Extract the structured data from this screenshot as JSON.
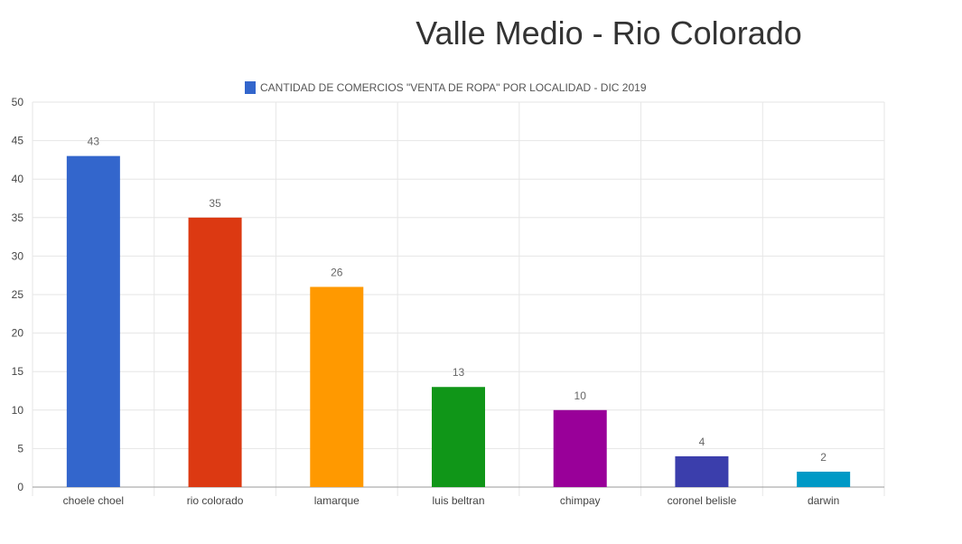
{
  "page": {
    "title": "Valle Medio - Rio Colorado"
  },
  "chart_data": {
    "type": "bar",
    "title": "",
    "xlabel": "",
    "ylabel": "",
    "categories": [
      "choele choel",
      "rio colorado",
      "lamarque",
      "luis beltran",
      "chimpay",
      "coronel belisle",
      "darwin"
    ],
    "series": [
      {
        "name": "CANTIDAD DE COMERCIOS \"VENTA DE ROPA\" POR LOCALIDAD - DIC 2019",
        "values": [
          43,
          35,
          26,
          13,
          10,
          4,
          2
        ]
      }
    ],
    "bar_colors": [
      "#3366cc",
      "#dc3912",
      "#ff9900",
      "#109618",
      "#990099",
      "#3b3eac",
      "#0099c6"
    ],
    "legend_color": "#3366cc",
    "ylim": [
      0,
      50
    ],
    "yticks": [
      0,
      5,
      10,
      15,
      20,
      25,
      30,
      35,
      40,
      45,
      50
    ],
    "grid": true,
    "data_labels": true,
    "legend_position": "top"
  }
}
